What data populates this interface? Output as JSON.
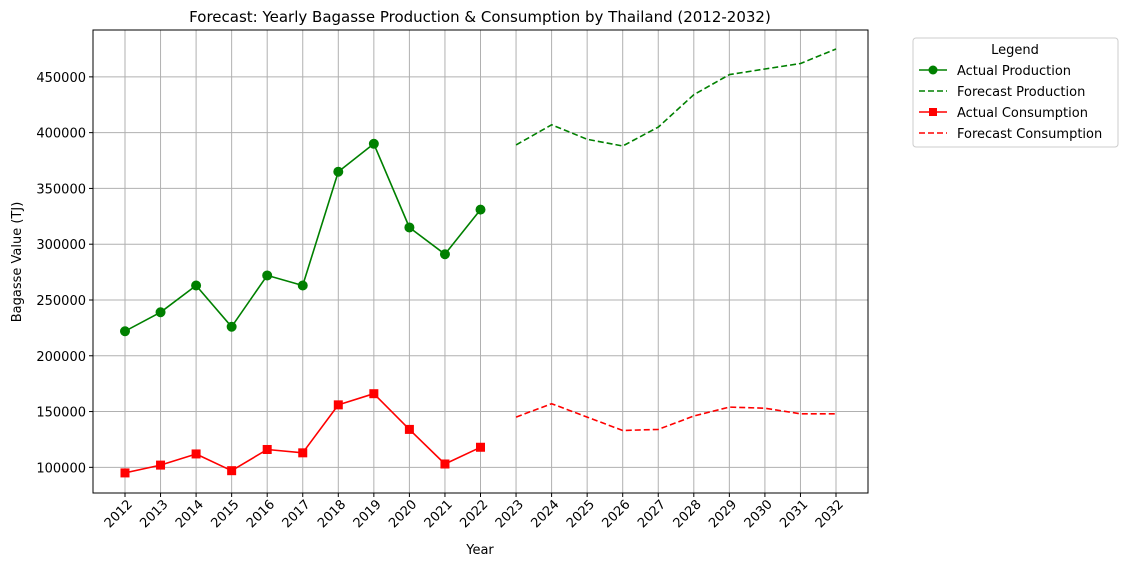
{
  "chart_data": {
    "type": "line",
    "title": "Forecast: Yearly Bagasse Production & Consumption by Thailand (2012-2032)",
    "xlabel": "Year",
    "ylabel": "Bagasse Value (TJ)",
    "x": [
      2012,
      2013,
      2014,
      2015,
      2016,
      2017,
      2018,
      2019,
      2020,
      2021,
      2022,
      2023,
      2024,
      2025,
      2026,
      2027,
      2028,
      2029,
      2030,
      2031,
      2032
    ],
    "x_tick_labels": [
      "2012",
      "2013",
      "2014",
      "2015",
      "2016",
      "2017",
      "2018",
      "2019",
      "2020",
      "2021",
      "2022",
      "2023",
      "2024",
      "2025",
      "2026",
      "2027",
      "2028",
      "2029",
      "2030",
      "2031",
      "2032"
    ],
    "xlim": [
      2011.1,
      2032.9
    ],
    "ylim": [
      77000,
      492000
    ],
    "y_ticks": [
      100000,
      150000,
      200000,
      250000,
      300000,
      350000,
      400000,
      450000
    ],
    "y_tick_labels": [
      "100000",
      "150000",
      "200000",
      "250000",
      "300000",
      "350000",
      "400000",
      "450000"
    ],
    "grid": true,
    "legend": {
      "title": "Legend",
      "placement": "outside-top-right"
    },
    "series": [
      {
        "name": "Actual Production",
        "color": "#008000",
        "style": "solid",
        "marker": "circle",
        "x": [
          2012,
          2013,
          2014,
          2015,
          2016,
          2017,
          2018,
          2019,
          2020,
          2021,
          2022
        ],
        "values": [
          222000,
          239000,
          263000,
          226000,
          272000,
          263000,
          365000,
          390000,
          315000,
          291000,
          331000
        ]
      },
      {
        "name": "Forecast Production",
        "color": "#008000",
        "style": "dashed",
        "marker": "none",
        "x": [
          2023,
          2024,
          2025,
          2026,
          2027,
          2028,
          2029,
          2030,
          2031,
          2032
        ],
        "values": [
          389000,
          407000,
          394000,
          388000,
          405000,
          434000,
          452000,
          457000,
          462000,
          475000
        ]
      },
      {
        "name": "Actual Consumption",
        "color": "#ff0000",
        "style": "solid",
        "marker": "square",
        "x": [
          2012,
          2013,
          2014,
          2015,
          2016,
          2017,
          2018,
          2019,
          2020,
          2021,
          2022
        ],
        "values": [
          95000,
          102000,
          112000,
          97000,
          116000,
          113000,
          156000,
          166000,
          134000,
          103000,
          118000
        ]
      },
      {
        "name": "Forecast Consumption",
        "color": "#ff0000",
        "style": "dashed",
        "marker": "none",
        "x": [
          2023,
          2024,
          2025,
          2026,
          2027,
          2028,
          2029,
          2030,
          2031,
          2032
        ],
        "values": [
          145000,
          157000,
          145000,
          133000,
          134000,
          146000,
          154000,
          153000,
          148000,
          148000
        ]
      }
    ]
  }
}
